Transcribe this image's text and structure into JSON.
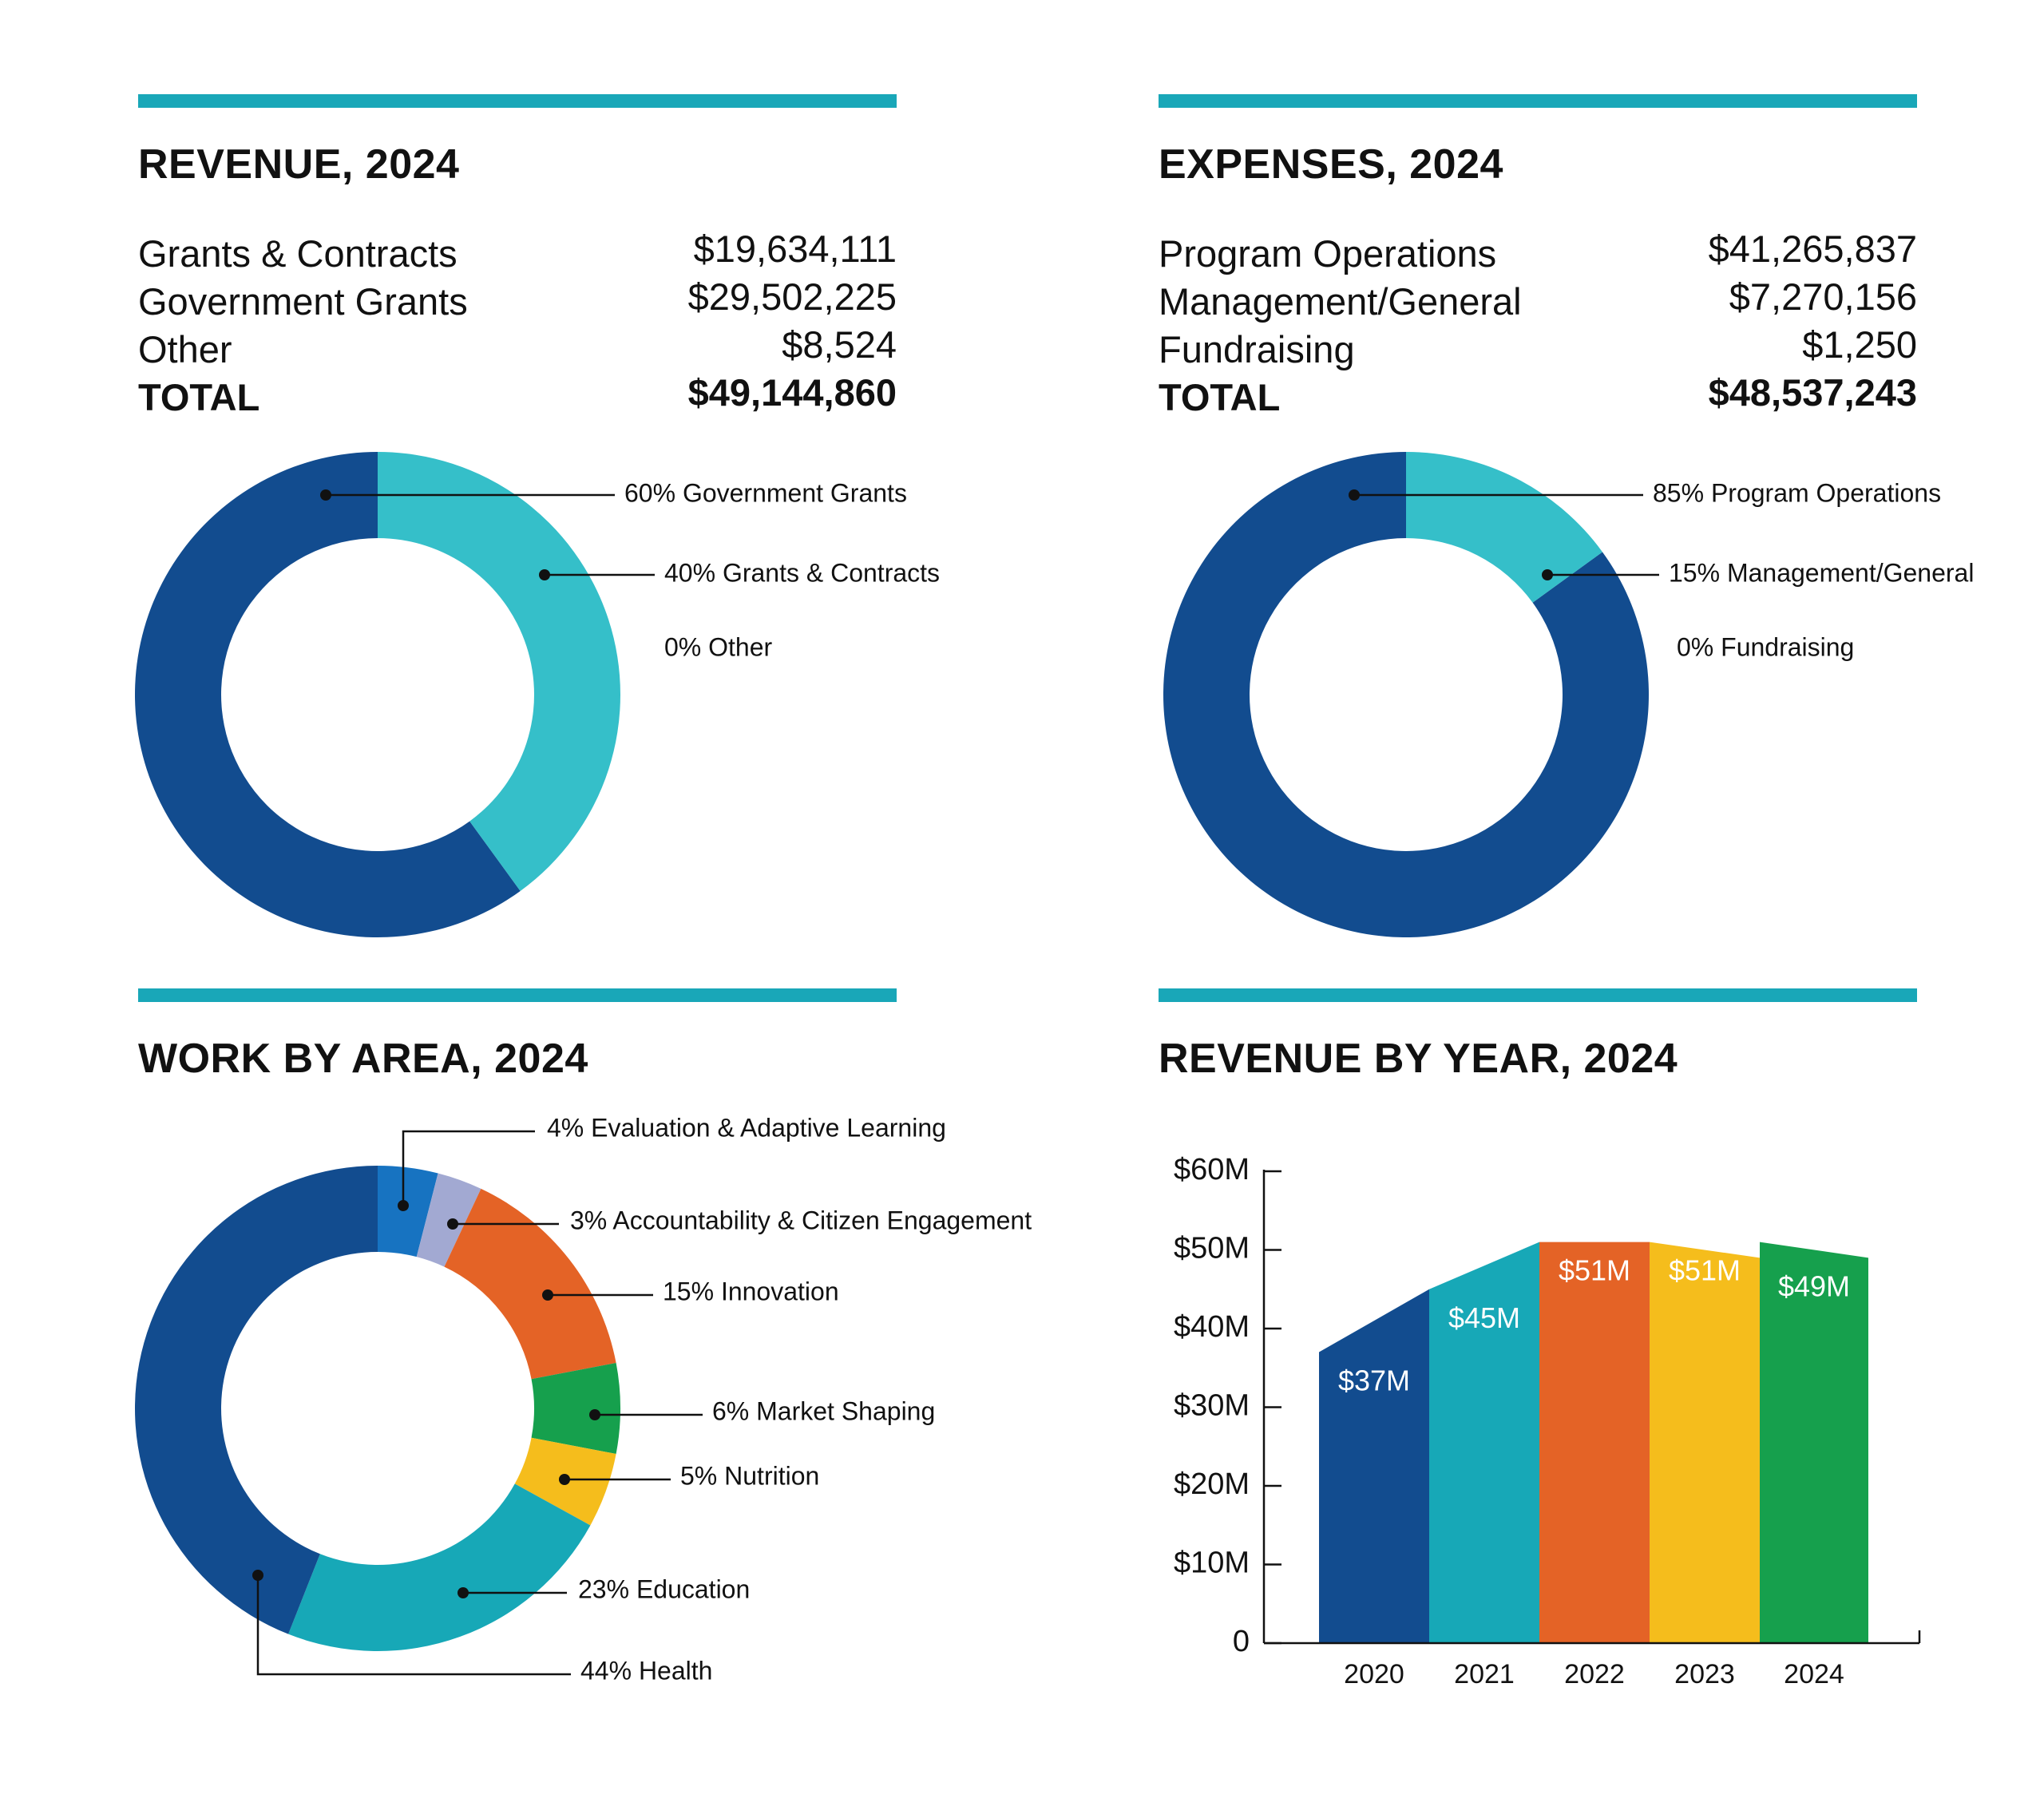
{
  "colors": {
    "bar": "#19a7b8",
    "navy": "#124c8f",
    "teal_light": "#35bfc9",
    "teal": "#17a8b7",
    "blue": "#1773c1",
    "lavender": "#a2a9d2",
    "orange": "#e46326",
    "green": "#16a04d",
    "yellow": "#f5bd1c"
  },
  "revenue": {
    "title": "REVENUE, 2024",
    "rows": [
      {
        "label": "Grants & Contracts",
        "value": "$19,634,111"
      },
      {
        "label": "Government Grants",
        "value": "$29,502,225"
      },
      {
        "label": "Other",
        "value": "$8,524"
      },
      {
        "label": "TOTAL",
        "value": "$49,144,860"
      }
    ]
  },
  "expenses": {
    "title": "EXPENSES, 2024",
    "rows": [
      {
        "label": "Program Operations",
        "value": "$41,265,837"
      },
      {
        "label": "Management/General",
        "value": "$7,270,156"
      },
      {
        "label": "Fundraising",
        "value": "$1,250"
      },
      {
        "label": "TOTAL",
        "value": "$48,537,243"
      }
    ]
  },
  "work_area": {
    "title": "WORK BY AREA, 2024"
  },
  "revenue_year": {
    "title": "REVENUE BY YEAR, 2024"
  },
  "chart_data": [
    {
      "type": "pie",
      "title": "REVENUE, 2024",
      "slices": [
        {
          "label": "60% Government Grants",
          "value": 60,
          "color": "navy"
        },
        {
          "label": "40% Grants & Contracts",
          "value": 40,
          "color": "teal_light"
        },
        {
          "label": "0% Other",
          "value": 0,
          "color": "navy"
        }
      ]
    },
    {
      "type": "pie",
      "title": "EXPENSES, 2024",
      "slices": [
        {
          "label": "85% Program Operations",
          "value": 85,
          "color": "navy"
        },
        {
          "label": "15% Management/General",
          "value": 15,
          "color": "teal_light"
        },
        {
          "label": "0% Fundraising",
          "value": 0,
          "color": "navy"
        }
      ]
    },
    {
      "type": "pie",
      "title": "WORK BY AREA, 2024",
      "slices": [
        {
          "label": "4% Evaluation & Adaptive Learning",
          "value": 4,
          "color": "blue"
        },
        {
          "label": "3% Accountability & Citizen Engagement",
          "value": 3,
          "color": "lavender"
        },
        {
          "label": "15% Innovation",
          "value": 15,
          "color": "orange"
        },
        {
          "label": "6% Market Shaping",
          "value": 6,
          "color": "green"
        },
        {
          "label": "5% Nutrition",
          "value": 5,
          "color": "yellow"
        },
        {
          "label": "23% Education",
          "value": 23,
          "color": "teal"
        },
        {
          "label": "44% Health",
          "value": 44,
          "color": "navy"
        }
      ]
    },
    {
      "type": "area",
      "title": "REVENUE BY YEAR, 2024",
      "categories": [
        "2020",
        "2021",
        "2022",
        "2023",
        "2024"
      ],
      "values": [
        37,
        45,
        51,
        51,
        49
      ],
      "data_labels": [
        "$37M",
        "$45M",
        "$51M",
        "$51M",
        "$49M"
      ],
      "colors": [
        "navy",
        "teal",
        "orange",
        "yellow",
        "green"
      ],
      "y_ticks": [
        "0",
        "$10M",
        "$20M",
        "$30M",
        "$40M",
        "$50M",
        "$60M"
      ],
      "ylim": [
        0,
        60
      ]
    }
  ]
}
